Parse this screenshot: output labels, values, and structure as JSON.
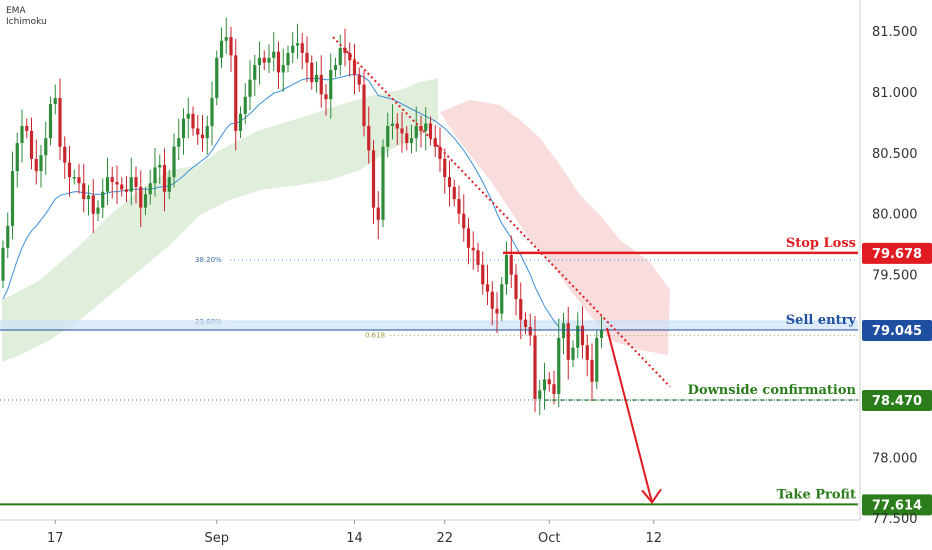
{
  "indicators": [
    "EMA",
    "Ichimoku"
  ],
  "colors": {
    "up": "#2e8b3a",
    "down": "#c8252c",
    "ema": "#3d8fd8",
    "cloud_bull": "#d5ead0",
    "cloud_bear": "#f8d3d3",
    "stop": "#e01b22",
    "entry": "#1f4fa0",
    "confirm": "#2a7d1a",
    "tp": "#2a7d1a",
    "trend": "#e01b22"
  },
  "chart_data": {
    "type": "candlestick",
    "y_axis": {
      "ticks": [
        "81.500",
        "81.000",
        "80.500",
        "80.000",
        "79.500",
        "78.000",
        "77.500"
      ],
      "tick_values": [
        81.5,
        81.0,
        80.5,
        80.0,
        79.5,
        78.0,
        77.5
      ],
      "range": [
        77.45,
        81.8
      ]
    },
    "x_axis": {
      "ticks": [
        "17",
        "Sep",
        "14",
        "22",
        "Oct",
        "12"
      ],
      "tick_bar_index": [
        11,
        45,
        74,
        93,
        115,
        137
      ]
    },
    "ohlc_open": [
      79.45,
      79.72,
      79.9,
      80.35,
      80.58,
      80.72,
      80.68,
      80.45,
      80.35,
      80.48,
      80.62,
      80.9,
      80.95,
      80.55,
      80.42,
      80.3,
      80.3,
      80.25,
      80.12,
      80.15,
      80.0,
      80.05,
      80.18,
      80.3,
      80.26,
      80.24,
      80.2,
      80.18,
      80.3,
      80.22,
      80.05,
      80.16,
      80.25,
      80.38,
      80.4,
      80.18,
      80.3,
      80.55,
      80.62,
      80.78,
      80.82,
      80.7,
      80.65,
      80.62,
      80.72,
      80.95,
      81.28,
      81.42,
      81.45,
      81.3,
      80.68,
      80.82,
      80.96,
      81.1,
      81.22,
      81.28,
      81.24,
      81.28,
      81.33,
      81.16,
      81.22,
      81.32,
      81.38,
      81.4,
      81.32,
      81.24,
      81.08,
      81.14,
      80.98,
      80.94,
      81.18,
      81.22,
      81.36,
      81.32,
      81.26,
      81.14,
      81.06,
      80.72,
      80.52,
      80.05,
      79.95,
      80.55,
      80.72,
      80.74,
      80.7,
      80.66,
      80.58,
      80.62,
      80.72,
      80.68,
      80.74,
      80.62,
      80.55,
      80.45,
      80.3,
      80.22,
      80.12,
      80.0,
      79.88,
      79.72,
      79.7,
      79.58,
      79.42,
      79.36,
      79.22,
      79.18,
      79.42,
      79.66,
      79.5,
      79.3,
      79.13,
      79.07,
      79.0,
      78.48,
      78.55,
      78.64,
      78.6,
      78.52,
      78.98,
      79.1,
      78.8,
      78.9,
      79.08,
      78.92,
      78.8,
      78.62,
      78.98
    ],
    "ohlc_close": [
      79.72,
      79.9,
      80.35,
      80.58,
      80.72,
      80.68,
      80.45,
      80.35,
      80.48,
      80.62,
      80.9,
      80.95,
      80.55,
      80.42,
      80.3,
      80.3,
      80.25,
      80.12,
      80.15,
      80.0,
      80.05,
      80.18,
      80.3,
      80.26,
      80.24,
      80.2,
      80.18,
      80.3,
      80.22,
      80.05,
      80.16,
      80.25,
      80.38,
      80.4,
      80.18,
      80.3,
      80.55,
      80.62,
      80.78,
      80.82,
      80.7,
      80.65,
      80.62,
      80.72,
      80.95,
      81.28,
      81.42,
      81.45,
      81.3,
      80.68,
      80.82,
      80.96,
      81.1,
      81.22,
      81.28,
      81.24,
      81.28,
      81.33,
      81.16,
      81.22,
      81.32,
      81.38,
      81.4,
      81.32,
      81.24,
      81.08,
      81.14,
      80.98,
      80.94,
      81.18,
      81.22,
      81.36,
      81.32,
      81.26,
      81.14,
      81.06,
      80.72,
      80.52,
      80.05,
      79.95,
      80.55,
      80.72,
      80.74,
      80.7,
      80.66,
      80.58,
      80.62,
      80.72,
      80.68,
      80.74,
      80.62,
      80.55,
      80.45,
      80.3,
      80.22,
      80.12,
      80.0,
      79.88,
      79.72,
      79.7,
      79.58,
      79.42,
      79.36,
      79.22,
      79.18,
      79.42,
      79.66,
      79.5,
      79.3,
      79.13,
      79.07,
      79.0,
      78.48,
      78.55,
      78.64,
      78.6,
      78.52,
      78.98,
      79.1,
      78.8,
      78.9,
      79.08,
      78.92,
      78.8,
      78.62,
      78.98,
      79.05
    ],
    "ema_values": [
      79.3,
      79.38,
      79.5,
      79.62,
      79.72,
      79.8,
      79.86,
      79.9,
      79.95,
      80.0,
      80.06,
      80.12,
      80.15,
      80.16,
      80.17,
      80.18,
      80.18,
      80.17,
      80.17,
      80.16,
      80.16,
      80.16,
      80.17,
      80.18,
      80.18,
      80.19,
      80.19,
      80.2,
      80.2,
      80.2,
      80.2,
      80.2,
      80.21,
      80.22,
      80.22,
      80.23,
      80.25,
      80.28,
      80.31,
      80.35,
      80.38,
      80.41,
      80.44,
      80.47,
      80.52,
      80.58,
      80.64,
      80.7,
      80.74,
      80.74,
      80.76,
      80.79,
      80.82,
      80.86,
      80.9,
      80.93,
      80.96,
      80.99,
      81.0,
      81.02,
      81.04,
      81.06,
      81.08,
      81.1,
      81.11,
      81.11,
      81.11,
      81.11,
      81.1,
      81.1,
      81.11,
      81.12,
      81.13,
      81.14,
      81.14,
      81.14,
      81.12,
      81.09,
      81.03,
      80.97,
      80.96,
      80.95,
      80.94,
      80.92,
      80.9,
      80.88,
      80.86,
      80.84,
      80.82,
      80.8,
      80.78,
      80.76,
      80.73,
      80.7,
      80.66,
      80.62,
      80.57,
      80.52,
      80.46,
      80.4,
      80.33,
      80.26,
      80.18,
      80.1,
      80.0,
      79.92,
      79.86,
      79.8,
      79.73,
      79.66,
      79.58,
      79.5,
      79.4,
      79.32,
      79.24,
      79.18,
      79.12,
      79.07
    ],
    "fib_levels": [
      {
        "label": "38.20%",
        "value": 79.62
      },
      {
        "label": "23.60%",
        "value": 79.11
      },
      {
        "label": "0.618",
        "value": 79.0
      }
    ],
    "levels": [
      {
        "name": "Stop Loss",
        "value": 79.678,
        "price_label": "79.678"
      },
      {
        "name": "Sell entry",
        "value": 79.045,
        "price_label": "79.045"
      },
      {
        "name": "Downside confirmation",
        "value": 78.47,
        "price_label": "78.470"
      },
      {
        "name": "Take Profit",
        "value": 77.614,
        "price_label": "77.614"
      }
    ]
  }
}
